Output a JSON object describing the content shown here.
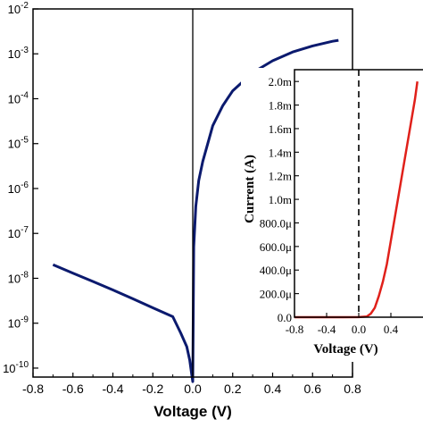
{
  "chart_data": [
    {
      "type": "line",
      "title": "",
      "xlabel": "Voltage (V)",
      "ylabel": "",
      "xlim": [
        -0.8,
        0.8
      ],
      "ylim_log10": [
        -10.2,
        -2
      ],
      "y_scale": "log",
      "x_ticks": [
        "-0.8",
        "-0.6",
        "-0.4",
        "-0.2",
        "0.0",
        "0.2",
        "0.4",
        "0.6",
        "0.8"
      ],
      "x_tick_values": [
        -0.8,
        -0.6,
        -0.4,
        -0.2,
        0.0,
        0.2,
        0.4,
        0.6,
        0.8
      ],
      "y_tick_exponents": [
        -10,
        -9,
        -8,
        -7,
        -6,
        -5,
        -4,
        -3,
        -2
      ],
      "y_tick_base": "10",
      "series": [
        {
          "color": "#0b1a6e",
          "x": [
            -0.7,
            -0.6,
            -0.5,
            -0.4,
            -0.3,
            -0.2,
            -0.1,
            -0.06,
            -0.03,
            -0.015,
            -0.005,
            0.0,
            0.005,
            0.015,
            0.03,
            0.05,
            0.08,
            0.1,
            0.15,
            0.2,
            0.3,
            0.4,
            0.5,
            0.6,
            0.7,
            0.73
          ],
          "y": [
            2e-08,
            1.3e-08,
            8.5e-09,
            5.5e-09,
            3.5e-09,
            2.2e-09,
            1.4e-09,
            6e-10,
            3e-10,
            1.5e-10,
            7e-11,
            5e-11,
            5e-08,
            4e-07,
            1.5e-06,
            4e-06,
            1.2e-05,
            2.5e-05,
            7e-05,
            0.00015,
            0.00038,
            0.0007,
            0.0011,
            0.0015,
            0.0019,
            0.002
          ]
        }
      ],
      "grid": false,
      "vertical_reference_line_x": 0
    },
    {
      "type": "line",
      "title": "",
      "xlabel": "Voltage (V)",
      "ylabel": "Current (A)",
      "xlim": [
        -0.8,
        0.8
      ],
      "ylim": [
        0,
        2.1
      ],
      "x_ticks": [
        "-0.8",
        "-0.4",
        "0.0",
        "0.4"
      ],
      "x_tick_values": [
        -0.8,
        -0.4,
        0.0,
        0.4
      ],
      "y_ticks": [
        "0.0",
        "200.0μ",
        "400.0μ",
        "600.0μ",
        "800.0μ",
        "1.0m",
        "1.2m",
        "1.4m",
        "1.6m",
        "1.8m",
        "2.0m"
      ],
      "y_tick_values_mA": [
        0,
        0.2,
        0.4,
        0.6,
        0.8,
        1.0,
        1.2,
        1.4,
        1.6,
        1.8,
        2.0
      ],
      "series": [
        {
          "color": "#e0201a",
          "x": [
            -0.8,
            -0.2,
            0.0,
            0.1,
            0.15,
            0.2,
            0.25,
            0.3,
            0.35,
            0.4,
            0.45,
            0.5,
            0.55,
            0.6,
            0.65,
            0.7,
            0.73
          ],
          "y_mA": [
            0,
            0,
            0.001,
            0.005,
            0.03,
            0.08,
            0.18,
            0.3,
            0.45,
            0.65,
            0.85,
            1.05,
            1.25,
            1.45,
            1.65,
            1.85,
            2.0
          ]
        }
      ],
      "grid": false,
      "dashed_reference_line_x": 0
    }
  ]
}
